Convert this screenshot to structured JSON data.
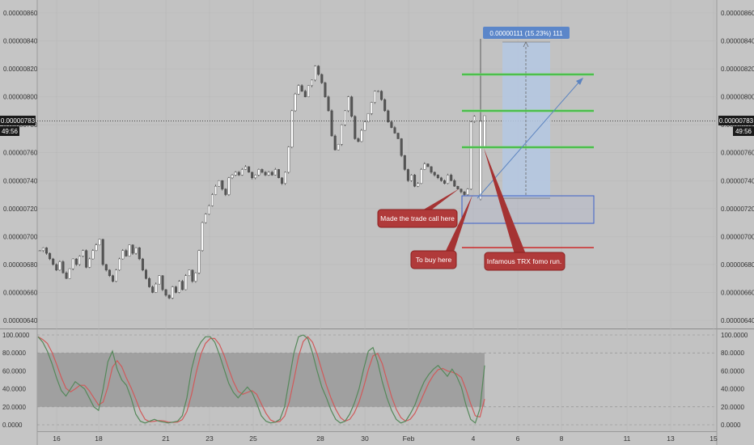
{
  "chart_data": [
    {
      "type": "candlestick",
      "title": "",
      "ylim": [
        6.3e-06,
        8.7e-06
      ],
      "y_ticks": [
        "0.00000640",
        "0.00000660",
        "0.00000680",
        "0.00000700",
        "0.00000720",
        "0.00000740",
        "0.00000760",
        "0.00000780",
        "0.00000800",
        "0.00000820",
        "0.00000840",
        "0.00000860"
      ],
      "x_ticks": [
        "16",
        "18",
        "21",
        "23",
        "25",
        "28",
        "30",
        "Feb",
        "4",
        "6",
        "8",
        "11",
        "13",
        "15"
      ],
      "current_price": {
        "value": "0.00000783",
        "countdown": "49:56"
      },
      "annotations": {
        "measure_label": "0.00000111 (15.23%) 111",
        "trade_call": "Made the trade call here",
        "buy_here": "To buy here",
        "fomo_run": "Infamous TRX fomo run."
      },
      "colors": {
        "up": "#ffffff",
        "down": "#555555",
        "highlight": "#ffffff",
        "target": "#36c036",
        "stop": "#cc2a2a",
        "measure": "#b4c8e3",
        "entry_box": "#3a5fc8",
        "callout": "#b23a3a"
      }
    },
    {
      "type": "line",
      "name": "stochastic",
      "ylim": [
        0,
        100
      ],
      "y_ticks": [
        "0.0000",
        "20.0000",
        "40.0000",
        "60.0000",
        "80.0000",
        "100.0000"
      ],
      "band": [
        20,
        80
      ],
      "series_colors": {
        "k": "#55885a",
        "d": "#d05a5a"
      }
    }
  ]
}
